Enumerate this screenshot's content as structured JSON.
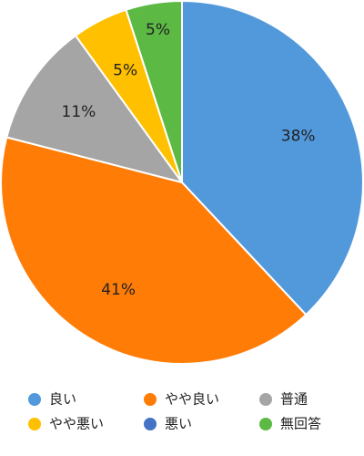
{
  "chart_data": {
    "type": "pie",
    "categories": [
      "良い",
      "やや良い",
      "普通",
      "やや悪い",
      "悪い",
      "無回答"
    ],
    "values": [
      38,
      41,
      11,
      5,
      0,
      5
    ],
    "value_labels": [
      "38%",
      "41%",
      "11%",
      "5%",
      null,
      "5%"
    ],
    "colors": [
      "#5299dc",
      "#ff7c07",
      "#a5a5a5",
      "#ffc000",
      "#4472c4",
      "#5cb944"
    ],
    "legend": "bottom"
  }
}
